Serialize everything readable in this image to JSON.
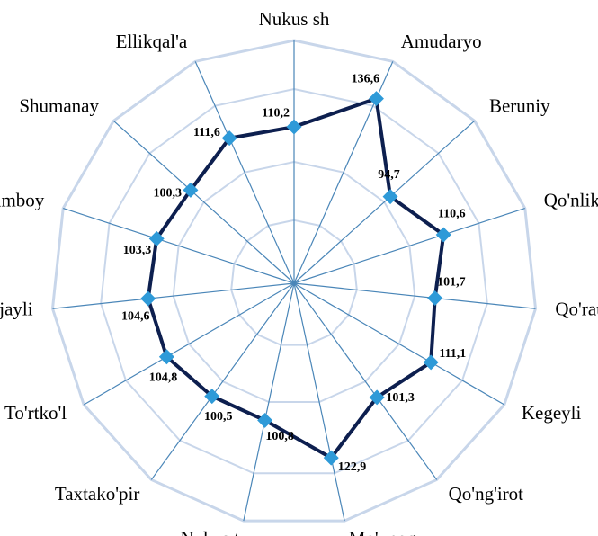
{
  "chart_data": {
    "type": "radar",
    "categories": [
      "Nukus sh",
      "Amudaryo",
      "Beruniy",
      "Qo'nliko'l",
      "Qo'rauzak",
      "Kegeyli",
      "Qo'ng'irot",
      "Mo'ynoq",
      "Nukus t",
      "Taxtako'pir",
      "To'rtko'l",
      "Xo'jayli",
      "Chimboy",
      "Shumanay",
      "Ellikqal'a"
    ],
    "values": [
      110.2,
      136.6,
      94.7,
      110.6,
      101.7,
      111.1,
      101.3,
      122.9,
      100.8,
      100.5,
      104.8,
      104.6,
      103.3,
      100.3,
      111.6
    ],
    "value_labels": [
      "110,2",
      "136,6",
      "94,7",
      "110,6",
      "101,7",
      "111,1",
      "101,3",
      "122,9",
      "100,8",
      "100,5",
      "104,8",
      "104,6",
      "103,3",
      "100,3",
      "111,6"
    ],
    "color": "#0d1f4f",
    "marker_color": "#2e9ad8",
    "ylim": [
      20,
      160
    ]
  }
}
